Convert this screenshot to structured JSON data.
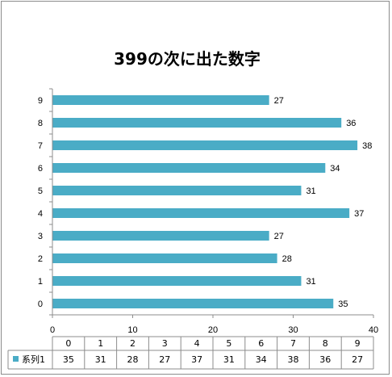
{
  "chart_data": {
    "type": "bar",
    "orientation": "horizontal",
    "title": "399の次に出た数字",
    "categories": [
      "0",
      "1",
      "2",
      "3",
      "4",
      "5",
      "6",
      "7",
      "8",
      "9"
    ],
    "series": [
      {
        "name": "系列1",
        "values": [
          35,
          31,
          28,
          27,
          37,
          31,
          34,
          38,
          36,
          27
        ]
      }
    ],
    "xlim": [
      0,
      40
    ],
    "xticks": [
      "0",
      "10",
      "20",
      "30",
      "40"
    ],
    "grid": false,
    "data_table": true,
    "colors": {
      "bar": "#4aacc6",
      "axis": "#8c8c8c"
    }
  }
}
